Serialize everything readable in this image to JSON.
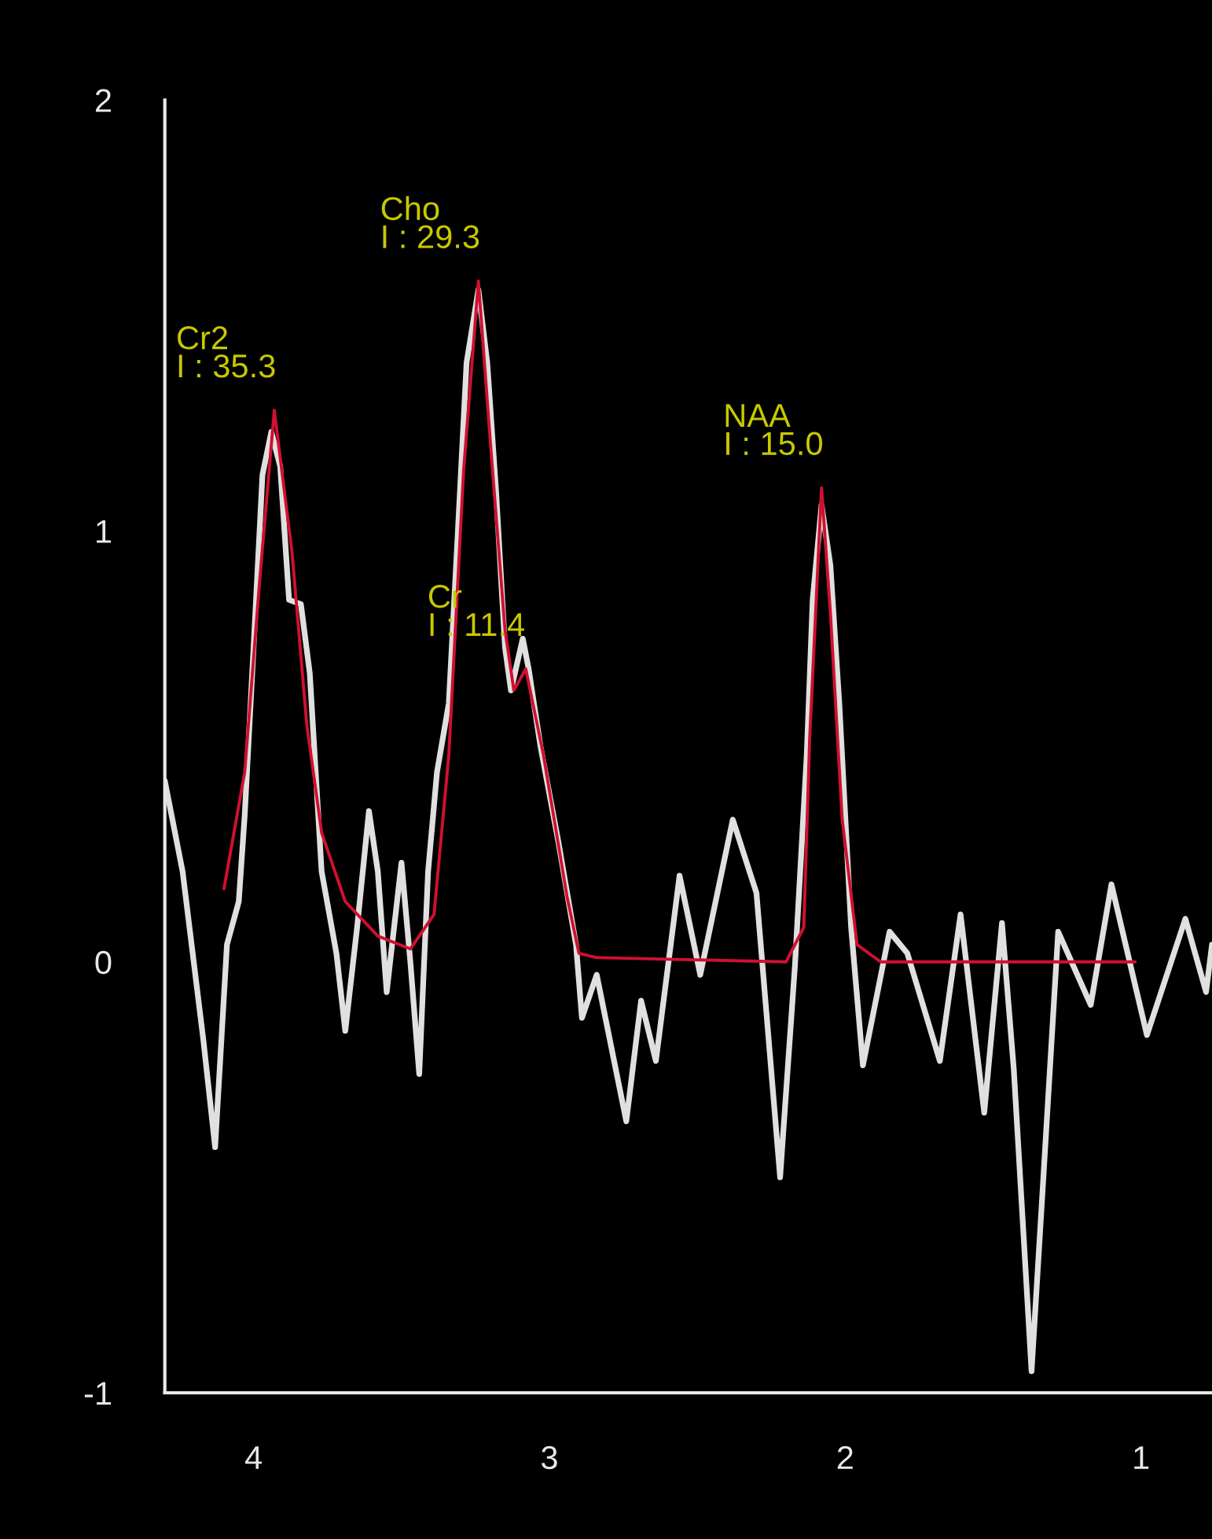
{
  "chart_data": {
    "type": "line",
    "xlim": [
      4.3,
      0.76
    ],
    "ylim": [
      -1,
      2
    ],
    "xticks": [
      4,
      3,
      2,
      1
    ],
    "yticks": [
      -1,
      0,
      1,
      2
    ],
    "grid": false,
    "legend": false,
    "marker": "none",
    "line_style": "solid",
    "series": [
      {
        "color": "#e0e0e0",
        "x": [
          4.3,
          4.24,
          4.17,
          4.13,
          4.09,
          4.05,
          4.03,
          4.0,
          3.97,
          3.94,
          3.91,
          3.88,
          3.84,
          3.81,
          3.77,
          3.72,
          3.69,
          3.65,
          3.61,
          3.58,
          3.55,
          3.5,
          3.47,
          3.44,
          3.41,
          3.38,
          3.34,
          3.31,
          3.28,
          3.24,
          3.21,
          3.18,
          3.15,
          3.13,
          3.09,
          3.07,
          3.03,
          2.97,
          2.91,
          2.89,
          2.84,
          2.74,
          2.69,
          2.64,
          2.56,
          2.49,
          2.38,
          2.3,
          2.22,
          2.17,
          2.13,
          2.11,
          2.08,
          2.05,
          2.02,
          1.98,
          1.94,
          1.85,
          1.79,
          1.68,
          1.61,
          1.53,
          1.47,
          1.43,
          1.37,
          1.33,
          1.28,
          1.17,
          1.1,
          0.98,
          0.85,
          0.78,
          0.76
        ],
        "values": [
          0.42,
          0.21,
          -0.18,
          -0.43,
          0.04,
          0.14,
          0.34,
          0.73,
          1.13,
          1.23,
          1.15,
          0.84,
          0.83,
          0.67,
          0.21,
          0.02,
          -0.16,
          0.08,
          0.35,
          0.21,
          -0.07,
          0.23,
          0.0,
          -0.26,
          0.21,
          0.44,
          0.6,
          0.99,
          1.39,
          1.56,
          1.39,
          1.09,
          0.73,
          0.63,
          0.75,
          0.68,
          0.5,
          0.28,
          0.04,
          -0.13,
          -0.03,
          -0.37,
          -0.09,
          -0.23,
          0.2,
          -0.03,
          0.33,
          0.16,
          -0.5,
          -0.01,
          0.48,
          0.84,
          1.06,
          0.92,
          0.6,
          0.08,
          -0.24,
          0.07,
          0.02,
          -0.23,
          0.11,
          -0.35,
          0.09,
          -0.25,
          -0.95,
          -0.5,
          0.07,
          -0.1,
          0.18,
          -0.17,
          0.1,
          -0.07,
          0.04
        ]
      },
      {
        "color": "#d01030",
        "x": [
          4.1,
          4.03,
          3.98,
          3.93,
          3.87,
          3.82,
          3.77,
          3.69,
          3.58,
          3.47,
          3.39,
          3.34,
          3.29,
          3.24,
          3.2,
          3.15,
          3.12,
          3.08,
          3.02,
          2.94,
          2.9,
          2.84,
          2.2,
          2.14,
          2.12,
          2.08,
          2.05,
          2.01,
          1.96,
          1.88,
          1.02
        ],
        "values": [
          0.17,
          0.44,
          0.88,
          1.28,
          0.95,
          0.55,
          0.3,
          0.14,
          0.06,
          0.03,
          0.11,
          0.48,
          1.14,
          1.58,
          1.21,
          0.77,
          0.63,
          0.68,
          0.48,
          0.15,
          0.02,
          0.01,
          0.0,
          0.08,
          0.52,
          1.1,
          0.81,
          0.33,
          0.04,
          0.0,
          0.0
        ]
      }
    ],
    "annotations": [
      {
        "text": "Cr2\nI : 35.3",
        "x": 3.93,
        "y": 1.28
      },
      {
        "text": "Cho\nI : 29.3",
        "x": 3.24,
        "y": 1.58
      },
      {
        "text": "Cr\nI : 11.4",
        "x": 3.08,
        "y": 0.68
      },
      {
        "text": "NAA\nI : 15.0",
        "x": 2.08,
        "y": 1.1
      }
    ]
  }
}
